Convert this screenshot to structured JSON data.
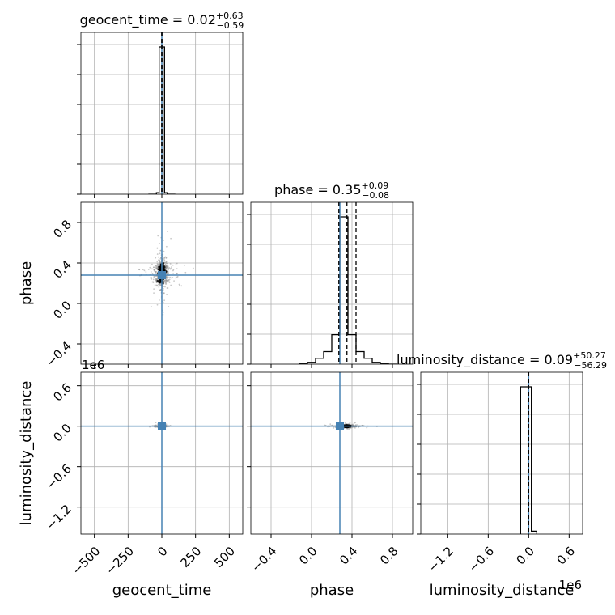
{
  "chart_data": {
    "type": "corner",
    "parameters": [
      "geocent_time",
      "phase",
      "luminosity_distance"
    ],
    "truths": {
      "geocent_time": 0.0,
      "phase": 0.28,
      "luminosity_distance": 0.0
    },
    "colors": {
      "truth": "#4682b4",
      "hist": "#000000",
      "grid": "#b0b0b0",
      "samples": "#000000"
    },
    "grid": true,
    "titles": [
      {
        "param": "geocent_time",
        "text": "geocent_time = 0.02",
        "sup": "+0.63",
        "sub": "−0.59"
      },
      {
        "param": "phase",
        "text": "phase = 0.35",
        "sup": "+0.09",
        "sub": "−0.08"
      },
      {
        "param": "luminosity_distance",
        "text": "luminosity_distance = 0.09",
        "sup": "+50.27",
        "sub": "−56.29"
      }
    ],
    "axes": {
      "geocent_time": {
        "label": "geocent_time",
        "range": [
          -600,
          600
        ],
        "ticks": [
          -500,
          -250,
          0,
          250,
          500
        ],
        "tick_labels": [
          "−500",
          "−250",
          "0",
          "250",
          "500"
        ]
      },
      "phase": {
        "label": "phase",
        "range": [
          -0.6,
          1.0
        ],
        "ticks": [
          -0.4,
          0.0,
          0.4,
          0.8
        ],
        "tick_labels": [
          "−0.4",
          "0.0",
          "0.4",
          "0.8"
        ]
      },
      "luminosity_distance": {
        "label": "luminosity_distance",
        "range": [
          -1.6,
          0.8
        ],
        "ticks": [
          -1.2,
          -0.6,
          0.0,
          0.6
        ],
        "tick_labels": [
          "−1.2",
          "−0.6",
          "0.0",
          "0.6"
        ],
        "offset_text": "1e6"
      }
    },
    "histograms": {
      "geocent_time": {
        "bin_edges": [
          -100,
          -80,
          -60,
          -40,
          -20,
          0,
          20,
          40,
          60,
          80,
          100
        ],
        "counts": [
          0,
          0,
          0,
          0.01,
          1.0,
          1.0,
          0.01,
          0,
          0,
          0
        ],
        "quantiles": [
          -0.57,
          0.02,
          0.65
        ]
      },
      "phase": {
        "bin_edges": [
          -0.12,
          -0.04,
          0.04,
          0.12,
          0.2,
          0.28,
          0.36,
          0.44,
          0.52,
          0.6,
          0.68,
          0.76,
          0.84
        ],
        "counts": [
          0.005,
          0.012,
          0.04,
          0.085,
          0.2,
          1.0,
          0.2,
          0.085,
          0.04,
          0.012,
          0.005,
          0.0
        ],
        "quantiles": [
          0.27,
          0.35,
          0.44
        ]
      },
      "luminosity_distance": {
        "bin_edges": [
          -0.12,
          -0.04,
          0.04,
          0.12
        ],
        "counts": [
          1.0,
          1.0,
          0.02
        ],
        "quantiles": [
          -6e-05,
          9e-08,
          5e-05
        ]
      }
    },
    "scatter_panels": [
      {
        "x": "geocent_time",
        "y": "phase",
        "center": [
          0,
          0.3
        ],
        "spread": [
          80,
          0.15
        ]
      },
      {
        "x": "geocent_time",
        "y": "luminosity_distance",
        "center": [
          0,
          0.0
        ],
        "spread": [
          30,
          0.02
        ]
      },
      {
        "x": "phase",
        "y": "luminosity_distance",
        "center": [
          0.35,
          0.0
        ],
        "spread": [
          0.1,
          0.02
        ]
      }
    ]
  }
}
